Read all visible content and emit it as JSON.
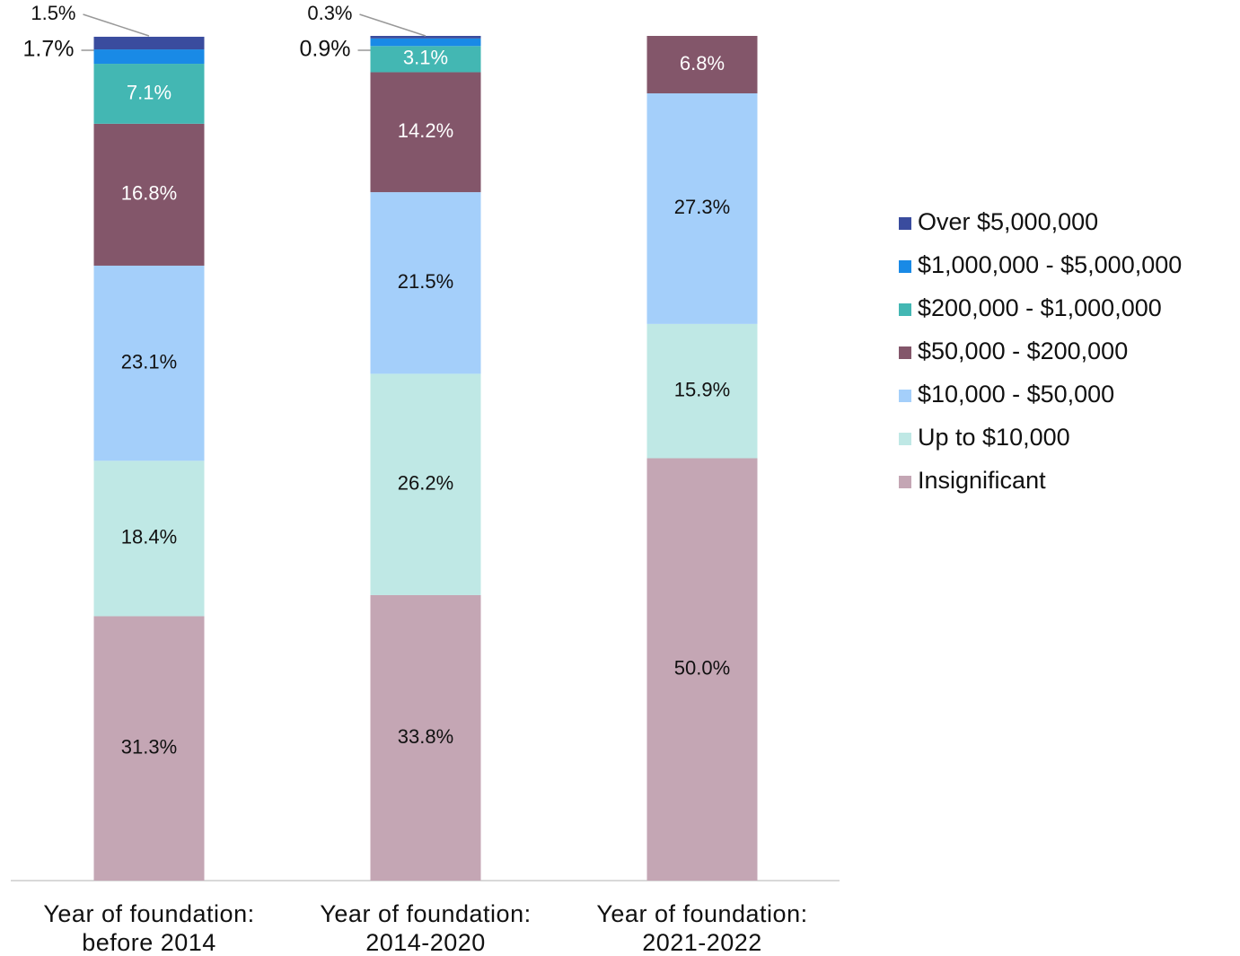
{
  "chart_data": {
    "type": "stacked_bar",
    "categories": [
      "Year of foundation: before 2014",
      "Year of foundation: 2014-2020",
      "Year of foundation: 2021-2022"
    ],
    "ylim": [
      0,
      100
    ],
    "series": [
      {
        "name": "Over $5,000,000",
        "color": "#3a4c9e",
        "values": [
          1.5,
          0.3,
          null
        ],
        "value_labels": [
          "1.5%",
          "0.3%",
          null
        ]
      },
      {
        "name": "$1,000,000 - $5,000,000",
        "color": "#198ae6",
        "values": [
          1.7,
          0.9,
          null
        ],
        "value_labels": [
          "1.7%",
          "0.9%",
          null
        ]
      },
      {
        "name": "$200,000 - $1,000,000",
        "color": "#43b7b3",
        "values": [
          7.1,
          3.1,
          null
        ],
        "value_labels": [
          "7.1%",
          "3.1%",
          null
        ]
      },
      {
        "name": "$50,000 - $200,000",
        "color": "#83566a",
        "values": [
          16.8,
          14.2,
          6.8
        ],
        "value_labels": [
          "16.8%",
          "14.2%",
          "6.8%"
        ]
      },
      {
        "name": "$10,000 - $50,000",
        "color": "#a4cffa",
        "values": [
          23.1,
          21.5,
          27.3
        ],
        "value_labels": [
          "23.1%",
          "21.5%",
          "27.3%"
        ]
      },
      {
        "name": "Up to $10,000",
        "color": "#bfe8e5",
        "values": [
          18.4,
          26.2,
          15.9
        ],
        "value_labels": [
          "18.4%",
          "26.2%",
          "15.9%"
        ]
      },
      {
        "name": "Insignificant",
        "color": "#c4a6b4",
        "values": [
          31.3,
          33.8,
          50.0
        ],
        "value_labels": [
          "31.3%",
          "33.8%",
          "50.0%"
        ]
      }
    ],
    "legend": "right"
  }
}
